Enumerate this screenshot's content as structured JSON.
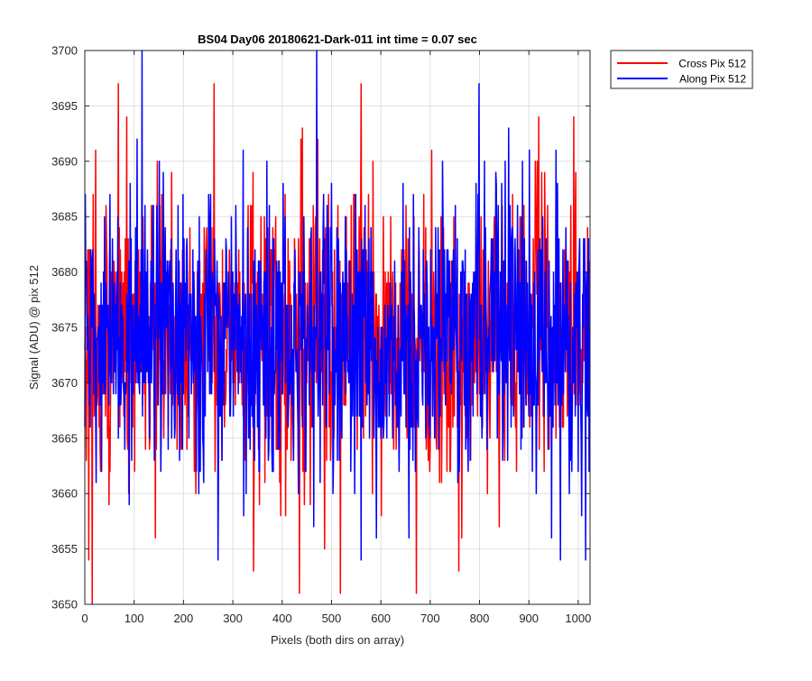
{
  "chart_data": {
    "type": "line",
    "title": "BS04 Day06 20180621-Dark-011 int time = 0.07 sec",
    "xlabel": "Pixels (both dirs on array)",
    "ylabel": "Signal (ADU) @ pix 512",
    "xlim": [
      0,
      1024
    ],
    "ylim": [
      3650,
      3700
    ],
    "xticks": [
      0,
      100,
      200,
      300,
      400,
      500,
      600,
      700,
      800,
      900,
      1000
    ],
    "yticks": [
      3650,
      3655,
      3660,
      3665,
      3670,
      3675,
      3680,
      3685,
      3690,
      3695,
      3700
    ],
    "grid": true,
    "legend_position": "outside-top-right",
    "series_style": "noisy dark-frame signal around 3674 ADU, one sample per pixel (1024 samples)",
    "series": [
      {
        "name": "Cross Pix 512",
        "color": "#ff0000",
        "mean": 3674,
        "min": 3650,
        "max": 3697,
        "points": 1024,
        "notable_values": [
          [
            8,
            3654
          ],
          [
            15,
            3650
          ],
          [
            22,
            3691
          ],
          [
            68,
            3697
          ],
          [
            85,
            3694
          ],
          [
            262,
            3697
          ],
          [
            435,
            3651
          ],
          [
            560,
            3697
          ],
          [
            672,
            3651
          ],
          [
            920,
            3694
          ]
        ]
      },
      {
        "name": "Along Pix 512",
        "color": "#0000ff",
        "mean": 3674,
        "min": 3654,
        "max": 3700,
        "points": 1024,
        "notable_values": [
          [
            270,
            3654
          ],
          [
            470,
            3700
          ],
          [
            560,
            3654
          ],
          [
            1015,
            3654
          ]
        ]
      }
    ]
  }
}
